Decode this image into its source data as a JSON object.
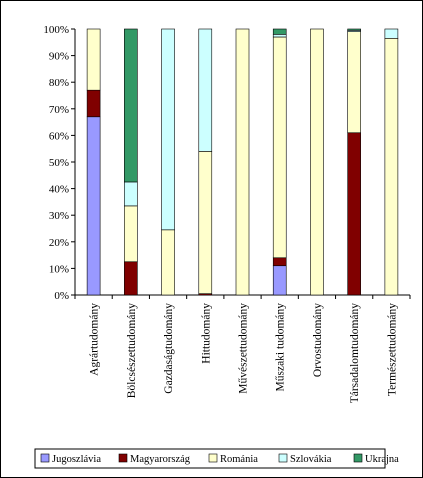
{
  "chart_data": {
    "type": "bar",
    "stacked": true,
    "percent": true,
    "categories": [
      "Agrártudomány",
      "Bölcsészettudomány",
      "Gazdaságtudomány",
      "Hittudomány",
      "Művészettudomány",
      "Műszaki tudomány",
      "Orvostudomány",
      "Társadalomtudomány",
      "Természettudomány"
    ],
    "series": [
      {
        "name": "Jugoszlávia",
        "color": "#9999ff",
        "values": [
          67,
          0,
          0,
          0,
          0,
          11,
          0,
          0,
          0
        ]
      },
      {
        "name": "Magyarország",
        "color": "#800000",
        "values": [
          10,
          12.5,
          0,
          0.5,
          0,
          3,
          0,
          61,
          0
        ]
      },
      {
        "name": "Románia",
        "color": "#ffffcc",
        "values": [
          23,
          21,
          24.5,
          53.5,
          100,
          83,
          100,
          38,
          96.5
        ]
      },
      {
        "name": "Szlovákia",
        "color": "#ccffff",
        "values": [
          0,
          9,
          75.5,
          46,
          0,
          1,
          0,
          0.5,
          3.5
        ]
      },
      {
        "name": "Ukrajna",
        "color": "#339966",
        "values": [
          0,
          57.5,
          0,
          0,
          0,
          2,
          0,
          0.5,
          0
        ]
      }
    ],
    "yticks": [
      "0%",
      "10%",
      "20%",
      "30%",
      "40%",
      "50%",
      "60%",
      "70%",
      "80%",
      "90%",
      "100%"
    ],
    "ylim": [
      0,
      100
    ],
    "grid": false,
    "legend": "bottom"
  }
}
